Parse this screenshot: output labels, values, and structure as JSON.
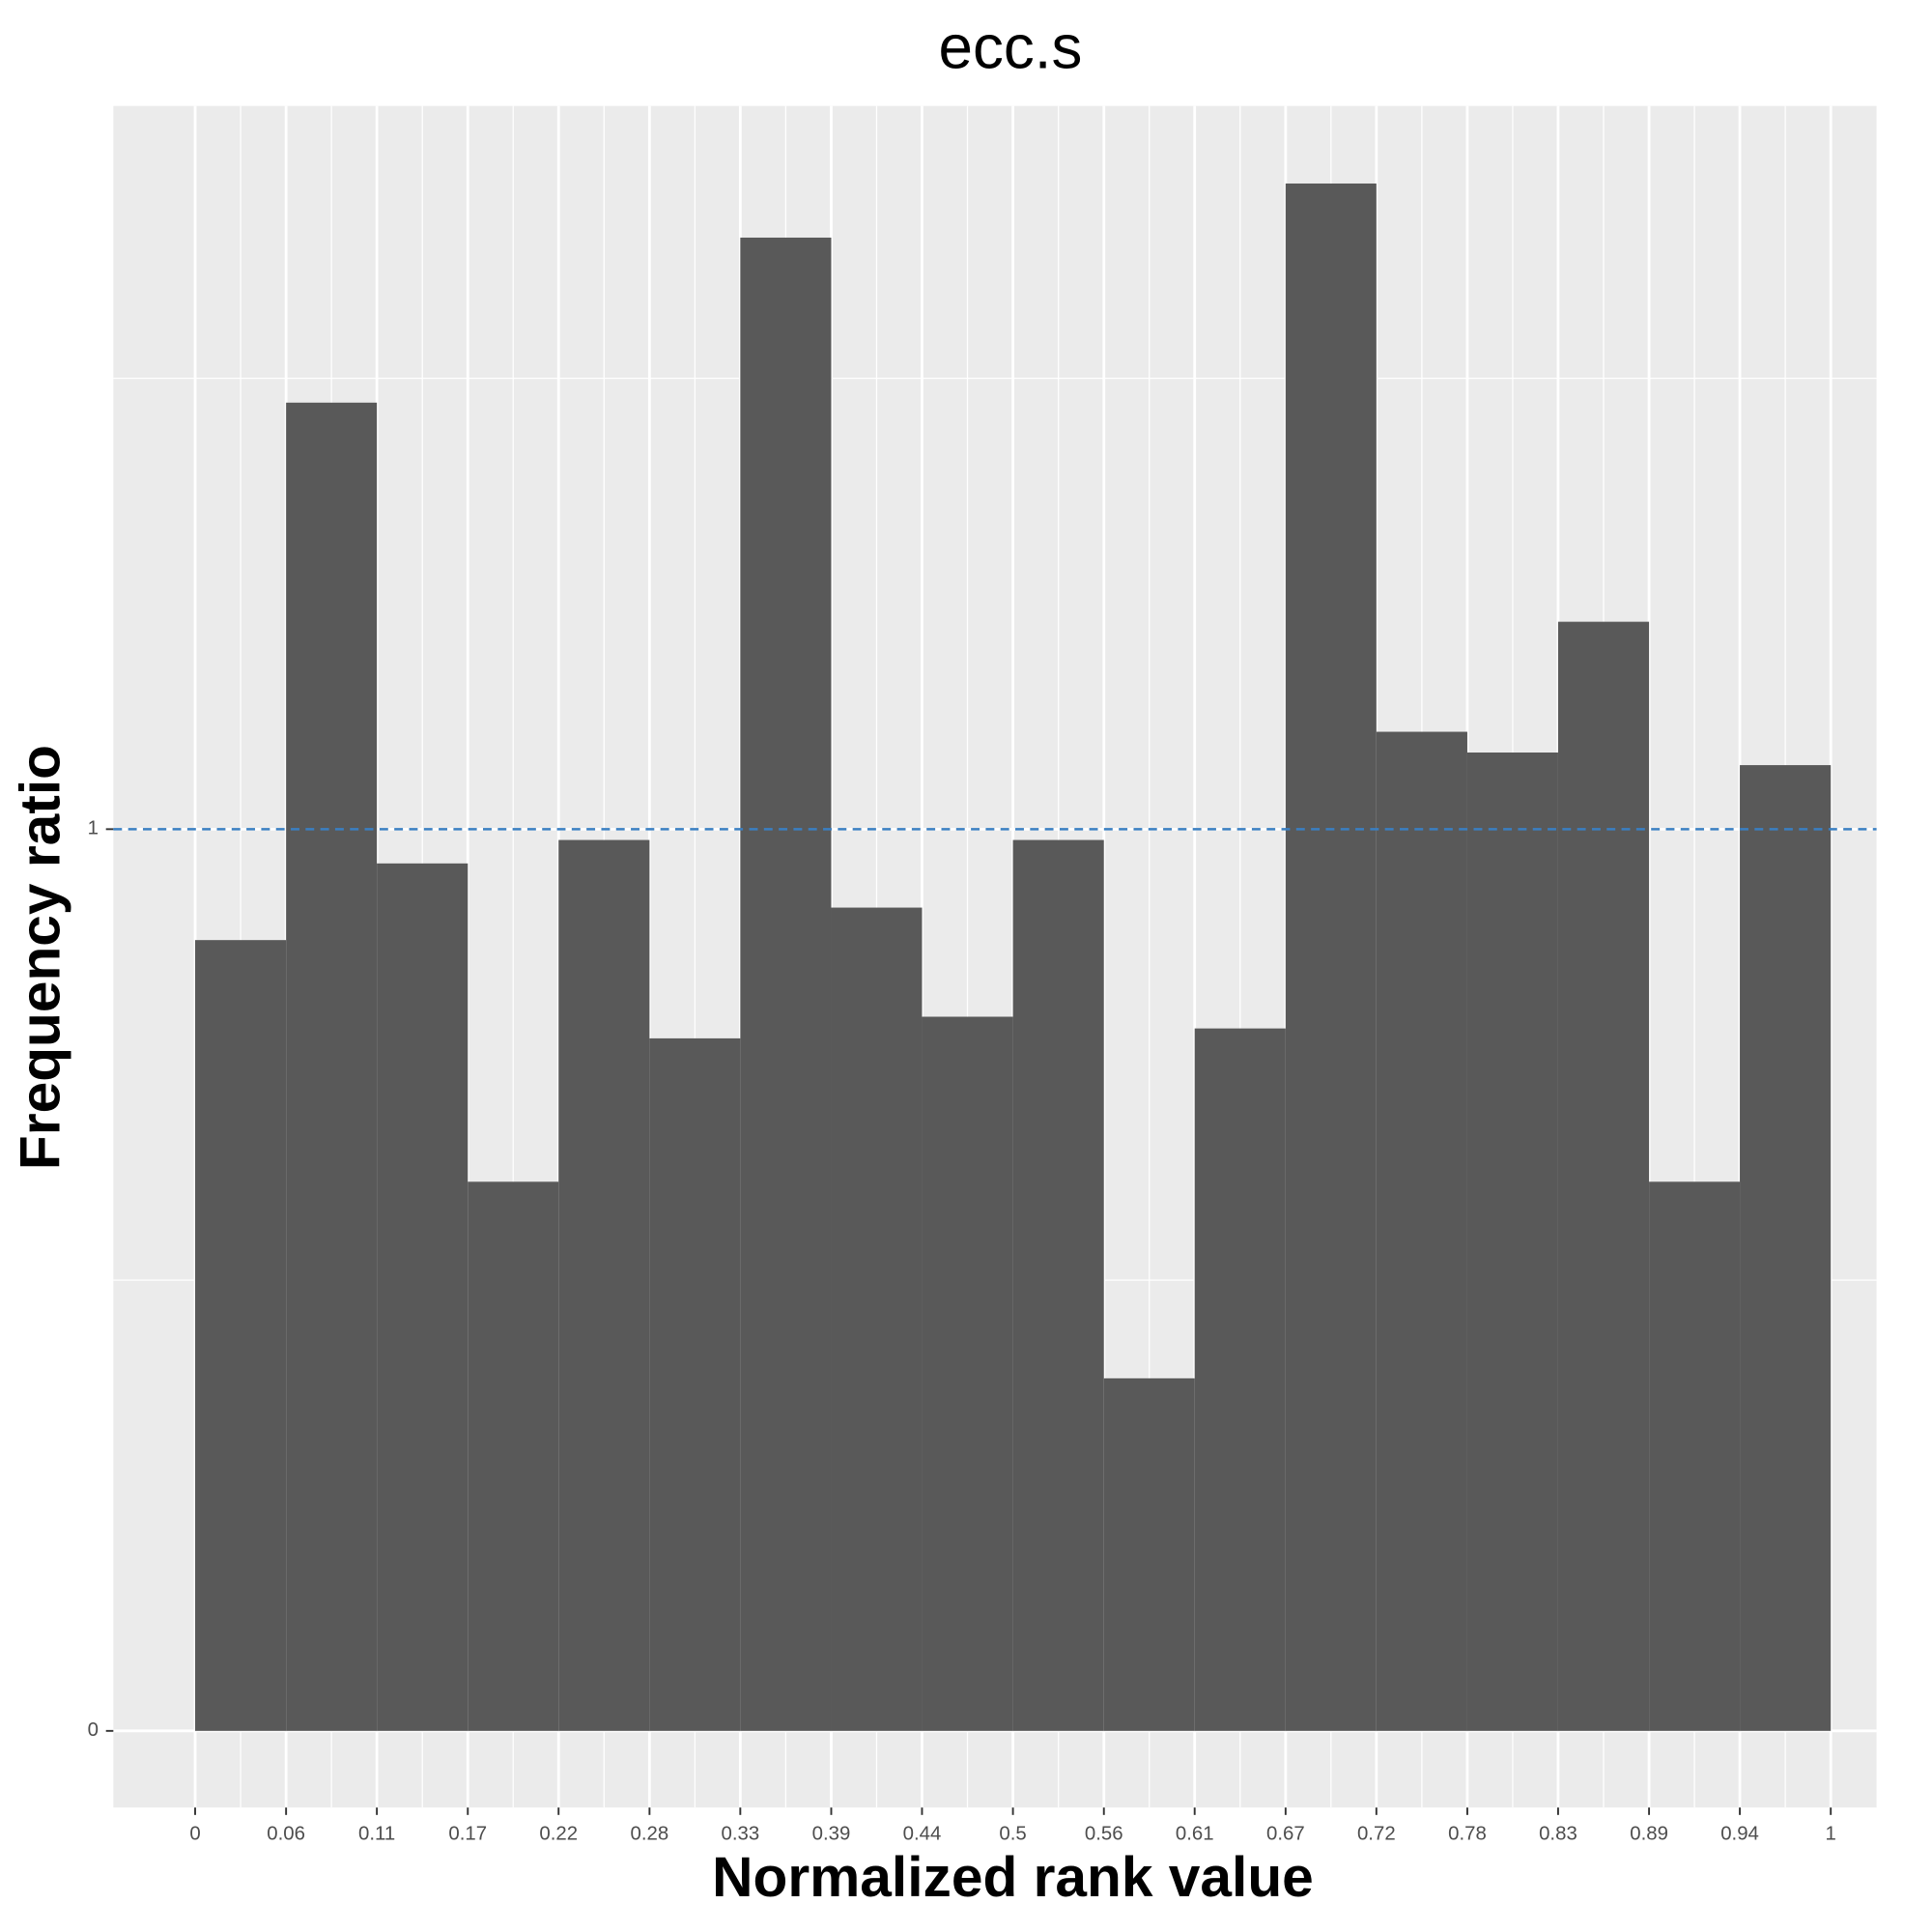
{
  "chart_data": {
    "type": "histogram",
    "title": "ecc.s",
    "x_label": "Normalized rank value",
    "y_label": "Frequency ratio",
    "bins": [
      0,
      0.0556,
      0.1111,
      0.1667,
      0.2222,
      0.2778,
      0.3333,
      0.3889,
      0.4444,
      0.5,
      0.5556,
      0.6111,
      0.6667,
      0.7222,
      0.7778,
      0.8333,
      0.8889,
      0.9444,
      1
    ],
    "values": [
      0.877,
      1.473,
      0.962,
      0.609,
      0.988,
      0.768,
      1.656,
      0.913,
      0.792,
      0.988,
      0.391,
      0.779,
      1.716,
      1.108,
      1.085,
      1.23,
      0.609,
      1.071
    ],
    "color": "#595959",
    "xlim": [
      -0.05,
      1.028
    ],
    "ylim": [
      -0.085,
      1.802
    ],
    "xticks": [
      0,
      {
        "value": 0.0556,
        "label": "0.06"
      },
      {
        "value": 0.1111,
        "label": "0.11"
      },
      {
        "value": 0.1667,
        "label": "0.17"
      },
      {
        "value": 0.2222,
        "label": "0.22"
      },
      {
        "value": 0.2778,
        "label": "0.28"
      },
      {
        "value": 0.3333,
        "label": "0.33"
      },
      {
        "value": 0.3889,
        "label": "0.39"
      },
      {
        "value": 0.4444,
        "label": "0.44"
      },
      0.5,
      {
        "value": 0.5556,
        "label": "0.56"
      },
      {
        "value": 0.6111,
        "label": "0.61"
      },
      {
        "value": 0.6667,
        "label": "0.67"
      },
      {
        "value": 0.7222,
        "label": "0.72"
      },
      {
        "value": 0.7778,
        "label": "0.78"
      },
      {
        "value": 0.8333,
        "label": "0.83"
      },
      {
        "value": 0.8889,
        "label": "0.89"
      },
      {
        "value": 0.9444,
        "label": "0.94"
      },
      1
    ],
    "yticks": [
      0,
      1
    ],
    "y_minor_ticks": [
      0.5,
      1.5
    ],
    "grid": true,
    "hline": 1,
    "hline_color": "#3a7fc1"
  }
}
